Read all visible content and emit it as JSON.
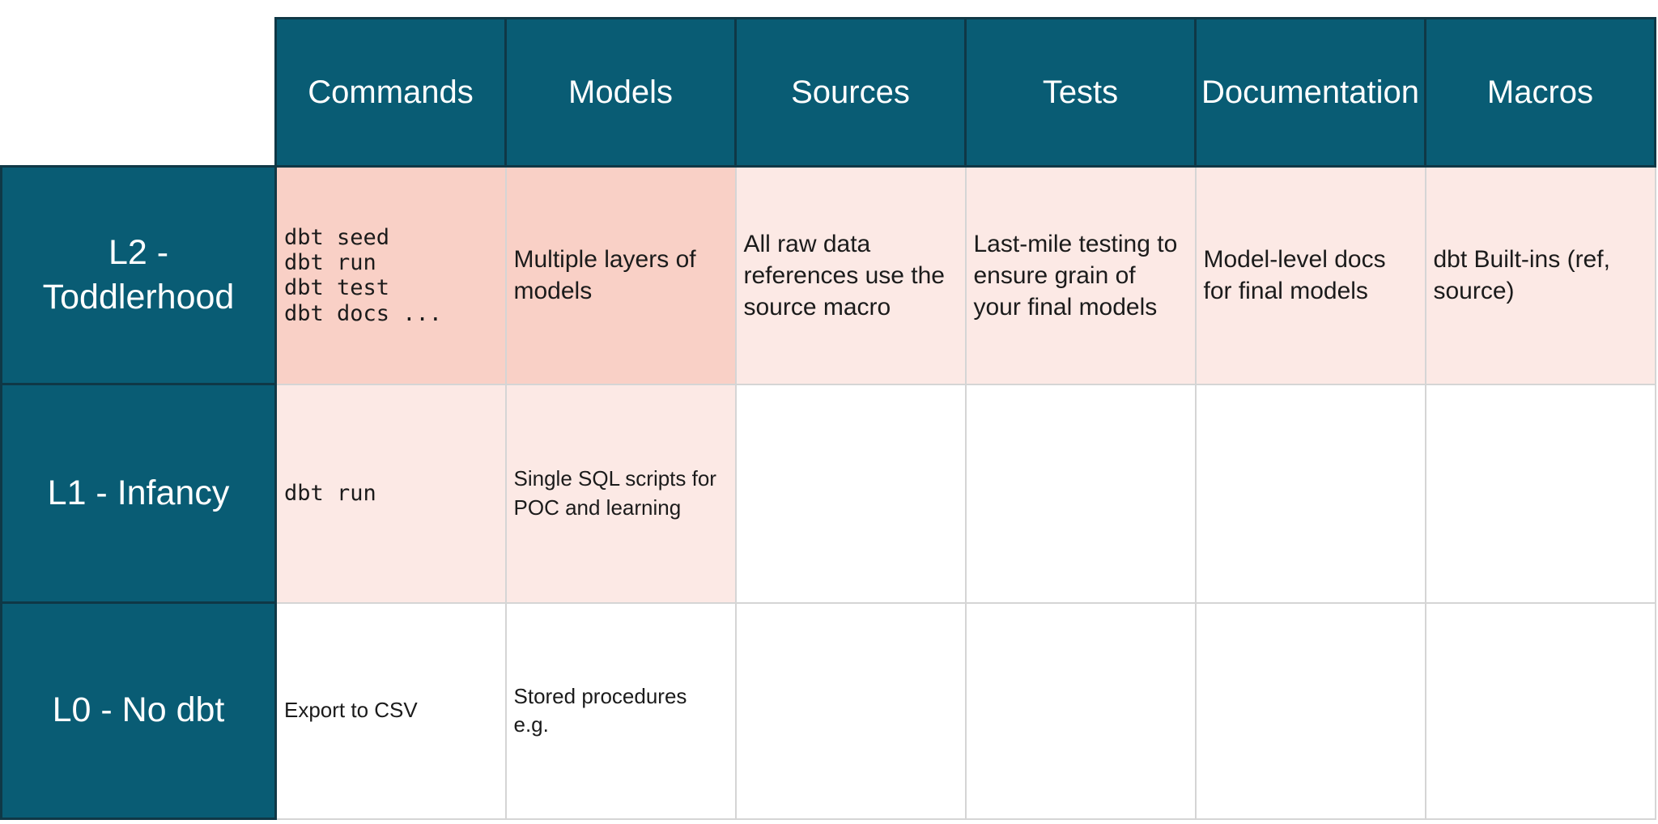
{
  "table": {
    "columns": [
      "Commands",
      "Models",
      "Sources",
      "Tests",
      "Documentation",
      "Macros"
    ],
    "rows": [
      {
        "label": "L2 -\nToddlerhood",
        "cells": [
          {
            "text": "dbt seed\ndbt run\ndbt test\ndbt docs ...",
            "mono": true,
            "bg": "salmon",
            "size": "md"
          },
          {
            "text": "Multiple layers of\nmodels",
            "mono": false,
            "bg": "salmon",
            "size": "md"
          },
          {
            "text": "All raw data\nreferences use the\nsource macro",
            "mono": false,
            "bg": "blush",
            "size": "md"
          },
          {
            "text": "Last-mile testing to\nensure grain of\nyour final models",
            "mono": false,
            "bg": "blush",
            "size": "md"
          },
          {
            "text": "Model-level docs\nfor final models",
            "mono": false,
            "bg": "blush",
            "size": "md"
          },
          {
            "text": "dbt Built-ins (ref,\nsource)",
            "mono": false,
            "bg": "blush",
            "size": "md"
          }
        ]
      },
      {
        "label": "L1 - Infancy",
        "cells": [
          {
            "text": "dbt run",
            "mono": true,
            "bg": "blush",
            "size": "md"
          },
          {
            "text": "Single SQL scripts for\nPOC and learning",
            "mono": false,
            "bg": "blush",
            "size": "sm"
          },
          {
            "text": "",
            "mono": false,
            "bg": "white",
            "size": "md"
          },
          {
            "text": "",
            "mono": false,
            "bg": "white",
            "size": "md"
          },
          {
            "text": "",
            "mono": false,
            "bg": "white",
            "size": "md"
          },
          {
            "text": "",
            "mono": false,
            "bg": "white",
            "size": "md"
          }
        ]
      },
      {
        "label": "L0 - No dbt",
        "cells": [
          {
            "text": "Export to CSV",
            "mono": false,
            "bg": "white",
            "size": "sm"
          },
          {
            "text": "Stored procedures\ne.g.",
            "mono": false,
            "bg": "white",
            "size": "sm"
          },
          {
            "text": "",
            "mono": false,
            "bg": "white",
            "size": "md"
          },
          {
            "text": "",
            "mono": false,
            "bg": "white",
            "size": "md"
          },
          {
            "text": "",
            "mono": false,
            "bg": "white",
            "size": "md"
          },
          {
            "text": "",
            "mono": false,
            "bg": "white",
            "size": "md"
          }
        ]
      }
    ],
    "layout": {
      "label_col_width": 339,
      "data_col_width": 284,
      "header_row_height": 183,
      "body_row_heights": [
        269,
        270,
        267
      ]
    },
    "colors": {
      "teal": "#095C74",
      "teal_border": "#0F3846",
      "salmon": "#F9D0C6",
      "blush": "#FCE9E5",
      "grid_border": "#D5D5D5",
      "header_text": "#FFFFFF",
      "body_text": "#1B1B1B"
    }
  }
}
